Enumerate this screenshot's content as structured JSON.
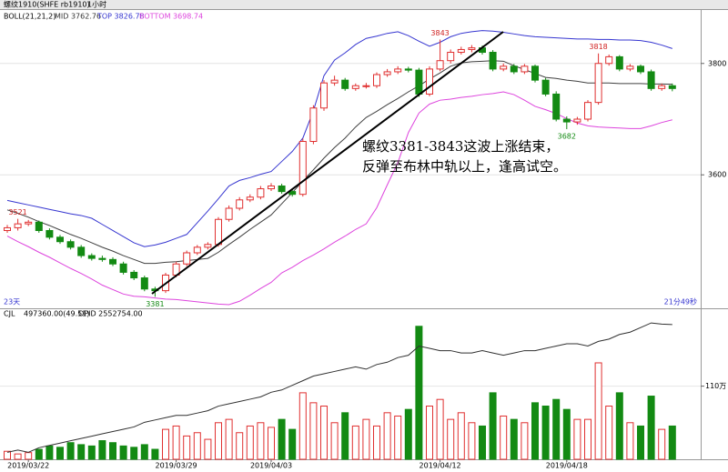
{
  "chart_data": {
    "type": "candlestick",
    "header": "螺纹1910(SHFE rb1910)",
    "period": "1小时",
    "indicator_labels": [
      "BOLL(21,21,2)",
      "MID 3762.76",
      "TOP 3826.78",
      "BOTTOM 3698.74"
    ],
    "corner_left": "23天",
    "corner_right": "21分49秒",
    "annotation": [
      "螺纹3381-3843这波上涨结束，",
      "反弹至布林中轨以上，逢高试空。"
    ],
    "volume_labels": [
      "CJL",
      "497360.00(49.51)",
      "OPID 2552754.00"
    ],
    "up_color": "#e03030",
    "down_color": "#138a13",
    "mid_color": "#404040",
    "top_color": "#3535d0",
    "bottom_color": "#dd44dd",
    "oi_color": "#303030",
    "ylim": [
      3362,
      3878
    ],
    "yticks": [
      3600,
      3800
    ],
    "labeled_highs": [
      1,
      41,
      56
    ],
    "labeled_lows": [
      14,
      53
    ],
    "categories": [
      null,
      null,
      "2019/03/22",
      null,
      null,
      null,
      null,
      null,
      null,
      null,
      null,
      null,
      null,
      null,
      null,
      null,
      "2019/03/29",
      null,
      null,
      null,
      null,
      null,
      null,
      null,
      null,
      "2019/04/03",
      null,
      null,
      null,
      null,
      null,
      null,
      null,
      null,
      null,
      null,
      null,
      null,
      null,
      null,
      null,
      "2019/04/12",
      null,
      null,
      null,
      null,
      null,
      null,
      null,
      null,
      null,
      null,
      null,
      "2019/04/18",
      null,
      null,
      null,
      null,
      null,
      null,
      null,
      null,
      null,
      null
    ],
    "open": [
      3500,
      3505,
      3512,
      3515,
      3500,
      3488,
      3480,
      3470,
      3455,
      3450,
      3448,
      3440,
      3425,
      3415,
      3395,
      3392,
      3420,
      3440,
      3460,
      3470,
      3475,
      3520,
      3540,
      3555,
      3560,
      3575,
      3580,
      3570,
      3565,
      3660,
      3720,
      3765,
      3770,
      3755,
      3760,
      3760,
      3780,
      3785,
      3790,
      3788,
      3745,
      3790,
      3805,
      3820,
      3825,
      3828,
      3820,
      3790,
      3795,
      3785,
      3795,
      3770,
      3745,
      3700,
      3695,
      3700,
      3730,
      3800,
      3812,
      3790,
      3795,
      3785,
      3755,
      3760
    ],
    "high": [
      3510,
      3521,
      3519,
      3518,
      3504,
      3492,
      3484,
      3474,
      3459,
      3455,
      3452,
      3444,
      3429,
      3419,
      3399,
      3424,
      3444,
      3464,
      3474,
      3479,
      3524,
      3545,
      3560,
      3565,
      3580,
      3585,
      3584,
      3574,
      3665,
      3725,
      3770,
      3778,
      3774,
      3764,
      3765,
      3784,
      3790,
      3795,
      3794,
      3792,
      3795,
      3843,
      3825,
      3830,
      3833,
      3832,
      3824,
      3800,
      3799,
      3799,
      3798,
      3774,
      3750,
      3705,
      3704,
      3734,
      3818,
      3816,
      3815,
      3799,
      3798,
      3789,
      3764,
      3764
    ],
    "low": [
      3496,
      3500,
      3508,
      3496,
      3484,
      3476,
      3466,
      3451,
      3446,
      3444,
      3436,
      3421,
      3411,
      3391,
      3381,
      3388,
      3416,
      3436,
      3456,
      3466,
      3471,
      3516,
      3536,
      3551,
      3556,
      3571,
      3566,
      3561,
      3561,
      3655,
      3715,
      3760,
      3751,
      3751,
      3755,
      3756,
      3776,
      3781,
      3784,
      3740,
      3741,
      3786,
      3800,
      3816,
      3820,
      3816,
      3786,
      3786,
      3781,
      3781,
      3766,
      3741,
      3696,
      3682,
      3690,
      3696,
      3726,
      3796,
      3786,
      3786,
      3781,
      3751,
      3751,
      3750
    ],
    "close": [
      3505,
      3512,
      3515,
      3500,
      3488,
      3480,
      3470,
      3455,
      3450,
      3448,
      3440,
      3425,
      3415,
      3395,
      3392,
      3420,
      3440,
      3460,
      3470,
      3475,
      3520,
      3540,
      3555,
      3560,
      3575,
      3580,
      3570,
      3565,
      3660,
      3720,
      3765,
      3770,
      3755,
      3760,
      3760,
      3780,
      3785,
      3790,
      3788,
      3745,
      3790,
      3805,
      3820,
      3825,
      3828,
      3820,
      3790,
      3795,
      3785,
      3795,
      3770,
      3745,
      3700,
      3695,
      3700,
      3730,
      3800,
      3812,
      3790,
      3795,
      3785,
      3755,
      3760,
      3755
    ],
    "mid": [
      3537,
      3531,
      3524,
      3516,
      3509,
      3501,
      3493,
      3486,
      3478,
      3470,
      3463,
      3455,
      3448,
      3441,
      3441,
      3443,
      3444,
      3446,
      3448,
      3450,
      3461,
      3475,
      3488,
      3502,
      3515,
      3528,
      3548,
      3568,
      3589,
      3609,
      3630,
      3649,
      3666,
      3686,
      3703,
      3714,
      3726,
      3737,
      3749,
      3760,
      3772,
      3783,
      3795,
      3801,
      3803,
      3804,
      3805,
      3804,
      3796,
      3789,
      3782,
      3775,
      3773,
      3770,
      3768,
      3765,
      3765,
      3765,
      3764,
      3764,
      3764,
      3763,
      3763,
      3762.76
    ],
    "top": [
      3554,
      3550,
      3546,
      3542,
      3538,
      3534,
      3530,
      3527,
      3522,
      3511,
      3500,
      3489,
      3478,
      3471,
      3474,
      3479,
      3486,
      3493,
      3514,
      3535,
      3557,
      3580,
      3590,
      3595,
      3601,
      3606,
      3624,
      3642,
      3666,
      3715,
      3778,
      3806,
      3819,
      3834,
      3845,
      3849,
      3854,
      3857,
      3850,
      3840,
      3831,
      3838,
      3848,
      3854,
      3857,
      3859,
      3858,
      3856,
      3853,
      3850,
      3848,
      3847,
      3846,
      3845,
      3844,
      3844,
      3843,
      3843,
      3842,
      3842,
      3841,
      3838,
      3833,
      3826.78
    ],
    "bottom": [
      3490,
      3480,
      3471,
      3461,
      3452,
      3442,
      3432,
      3423,
      3413,
      3402,
      3394,
      3386,
      3382,
      3381,
      3379,
      3377,
      3376,
      3374,
      3372,
      3370,
      3368,
      3367,
      3373,
      3384,
      3396,
      3407,
      3424,
      3434,
      3446,
      3456,
      3467,
      3479,
      3490,
      3502,
      3512,
      3541,
      3582,
      3622,
      3676,
      3711,
      3727,
      3734,
      3736,
      3739,
      3741,
      3744,
      3746,
      3749,
      3744,
      3734,
      3723,
      3717,
      3710,
      3701,
      3693,
      3688,
      3686,
      3685,
      3684,
      3683,
      3683,
      3688,
      3694,
      3698.74
    ],
    "volume": [
      12,
      8,
      10,
      15,
      20,
      18,
      25,
      22,
      20,
      28,
      25,
      20,
      18,
      22,
      15,
      45,
      50,
      35,
      40,
      30,
      55,
      60,
      40,
      50,
      55,
      48,
      60,
      45,
      100,
      85,
      80,
      55,
      70,
      50,
      60,
      50,
      70,
      65,
      75,
      200,
      80,
      90,
      60,
      70,
      55,
      50,
      100,
      65,
      60,
      55,
      85,
      80,
      90,
      75,
      60,
      60,
      145,
      80,
      100,
      55,
      50,
      95,
      45,
      50
    ],
    "volume_lim": [
      0,
      212
    ],
    "volume_ticks": [
      {
        "value": 110,
        "label": "110万"
      }
    ],
    "open_interest": [
      200,
      201,
      200,
      202,
      203,
      204,
      205,
      206,
      207,
      208,
      209,
      210,
      211,
      213,
      214,
      215,
      216,
      216,
      217,
      218,
      220,
      221,
      222,
      223,
      224,
      226,
      227,
      229,
      231,
      233,
      234,
      235,
      236,
      237,
      236,
      238,
      239,
      241,
      242,
      246,
      245,
      244,
      244,
      243,
      243,
      244,
      243,
      242,
      243,
      244,
      244,
      245,
      246,
      247,
      247,
      246,
      248,
      249,
      251,
      252,
      254,
      256,
      255.5,
      255.28
    ],
    "oi_lim": [
      197,
      258
    ]
  }
}
